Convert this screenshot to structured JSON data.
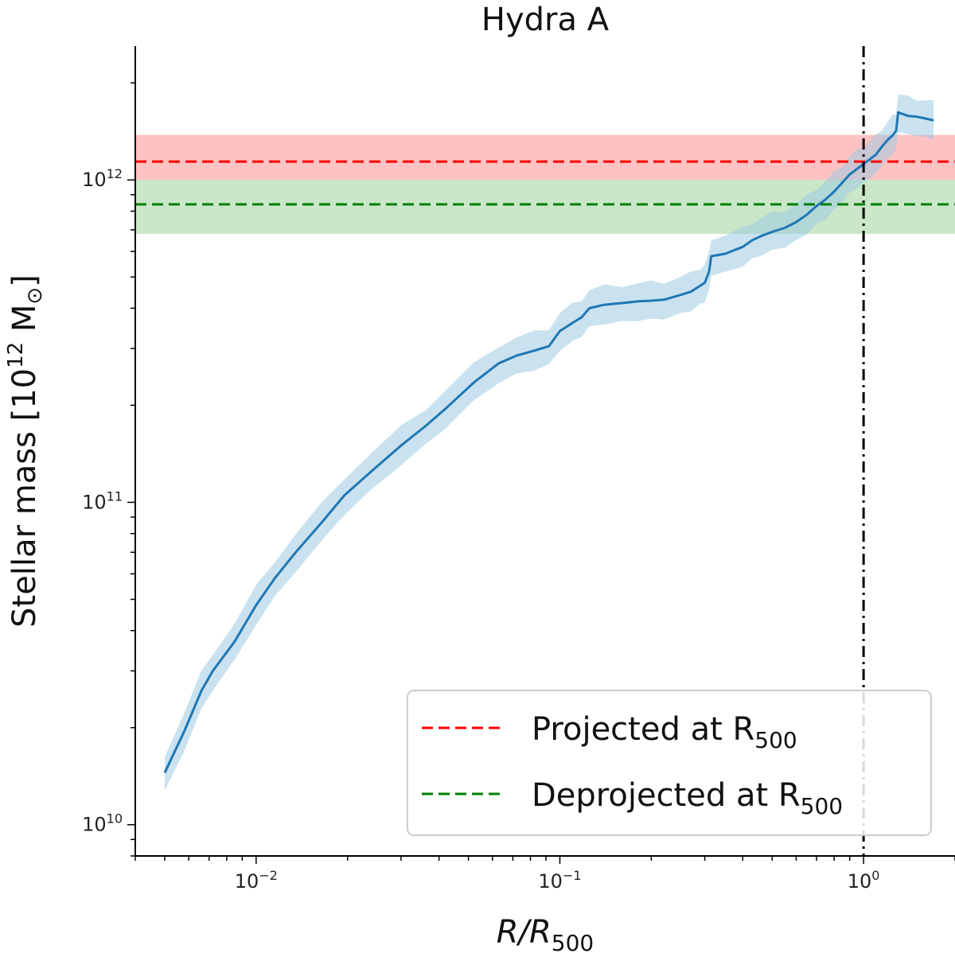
{
  "chart_data": {
    "type": "line",
    "title": "Hydra A",
    "xlabel": {
      "main": "R/R",
      "sub": "500"
    },
    "ylabel": {
      "main": "Stellar mass [10",
      "sup": "12",
      "unit": " M",
      "sub": "⊙",
      "close": "]"
    },
    "xscale": "log",
    "yscale": "log",
    "xlim": [
      0.004,
      2.0
    ],
    "ylim": [
      8000000000.0,
      2600000000000.0
    ],
    "x_ticks": [
      {
        "value": 0.01,
        "base": "10",
        "exp": "−2"
      },
      {
        "value": 0.1,
        "base": "10",
        "exp": "−1"
      },
      {
        "value": 1.0,
        "base": "10",
        "exp": "0"
      }
    ],
    "y_ticks": [
      {
        "value": 10000000000.0,
        "base": "10",
        "exp": "10"
      },
      {
        "value": 100000000000.0,
        "base": "10",
        "exp": "11"
      },
      {
        "value": 1000000000000.0,
        "base": "10",
        "exp": "12"
      }
    ],
    "series": [
      {
        "name": "Stellar mass profile",
        "color": "#1f77b4",
        "band_color": "#9ecae1",
        "relative_error": 0.12,
        "x": [
          0.005,
          0.0058,
          0.0066,
          0.0072,
          0.0085,
          0.01,
          0.0115,
          0.0135,
          0.0165,
          0.0195,
          0.024,
          0.03,
          0.036,
          0.042,
          0.052,
          0.063,
          0.072,
          0.082,
          0.092,
          0.1,
          0.11,
          0.118,
          0.125,
          0.14,
          0.16,
          0.18,
          0.2,
          0.22,
          0.25,
          0.27,
          0.29,
          0.3,
          0.31,
          0.315,
          0.35,
          0.4,
          0.43,
          0.46,
          0.5,
          0.55,
          0.6,
          0.65,
          0.7,
          0.75,
          0.8,
          0.85,
          0.9,
          0.95,
          1.0,
          1.05,
          1.1,
          1.15,
          1.2,
          1.25,
          1.28,
          1.3,
          1.4,
          1.5,
          1.6,
          1.7
        ],
        "y": [
          14500000000.0,
          19500000000.0,
          26000000000.0,
          30000000000.0,
          37000000000.0,
          48000000000.0,
          58000000000.0,
          70000000000.0,
          87000000000.0,
          105000000000.0,
          125000000000.0,
          150000000000.0,
          172000000000.0,
          195000000000.0,
          235000000000.0,
          270000000000.0,
          285000000000.0,
          295000000000.0,
          305000000000.0,
          340000000000.0,
          360000000000.0,
          375000000000.0,
          400000000000.0,
          410000000000.0,
          415000000000.0,
          420000000000.0,
          422000000000.0,
          425000000000.0,
          440000000000.0,
          450000000000.0,
          470000000000.0,
          480000000000.0,
          520000000000.0,
          580000000000.0,
          590000000000.0,
          620000000000.0,
          650000000000.0,
          670000000000.0,
          690000000000.0,
          710000000000.0,
          740000000000.0,
          780000000000.0,
          830000000000.0,
          870000000000.0,
          920000000000.0,
          980000000000.0,
          1040000000000.0,
          1080000000000.0,
          1120000000000.0,
          1160000000000.0,
          1200000000000.0,
          1270000000000.0,
          1330000000000.0,
          1380000000000.0,
          1420000000000.0,
          1620000000000.0,
          1580000000000.0,
          1570000000000.0,
          1550000000000.0,
          1530000000000.0
        ]
      }
    ],
    "hlines": [
      {
        "name": "Projected at R500",
        "value": 1140000000000.0,
        "band": [
          1000000000000.0,
          1380000000000.0
        ],
        "color": "#ff0000",
        "band_color": "#ff9a9a"
      },
      {
        "name": "Deprojected at R500",
        "value": 840000000000.0,
        "band": [
          680000000000.0,
          1000000000000.0
        ],
        "color": "#008000",
        "band_color": "#9fd49f"
      }
    ],
    "vline": {
      "value": 1.0,
      "color": "#000000"
    },
    "legend": {
      "position": "bottom-right",
      "entries": [
        {
          "label": "Projected at R",
          "sub": "500",
          "color": "#ff0000"
        },
        {
          "label": "Deprojected at R",
          "sub": "500",
          "color": "#008000"
        }
      ]
    }
  }
}
